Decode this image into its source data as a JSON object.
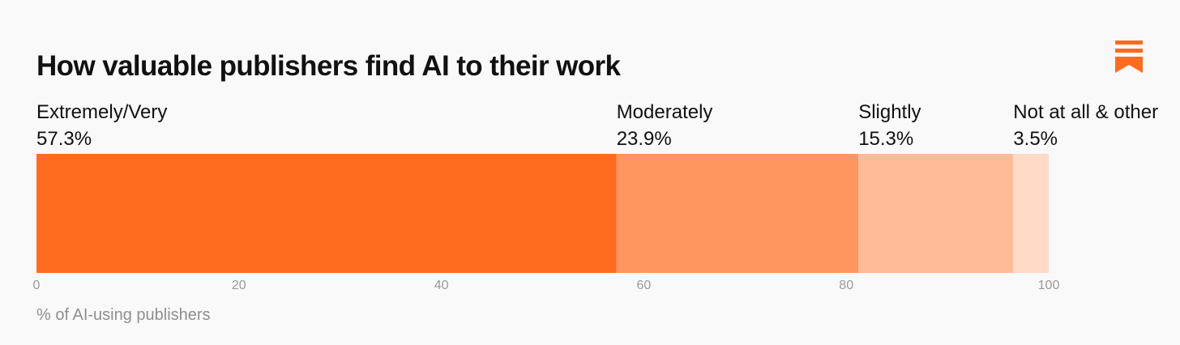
{
  "chart_data": {
    "type": "bar",
    "orientation": "horizontal-stacked",
    "title": "How valuable publishers find AI to their work",
    "xlabel": "% of AI-using publishers",
    "ylabel": "",
    "xlim": [
      0,
      100
    ],
    "ticks": [
      "0",
      "20",
      "40",
      "60",
      "80",
      "100"
    ],
    "tick_values": [
      0,
      20,
      40,
      60,
      80,
      100
    ],
    "grid": false,
    "legend": "labels above segments",
    "segments": [
      {
        "label": "Extremely/Very",
        "value": 57.3,
        "value_label": "57.3%",
        "color": "#ff6b1f"
      },
      {
        "label": "Moderately",
        "value": 23.9,
        "value_label": "23.9%",
        "color": "#ff9660"
      },
      {
        "label": "Slightly",
        "value": 15.3,
        "value_label": "15.3%",
        "color": "#ffbb97"
      },
      {
        "label": "Not at all & other",
        "value": 3.5,
        "value_label": "3.5%",
        "color": "#ffdac6"
      }
    ]
  },
  "brand": {
    "logo_icon": "bookmark-logo-icon",
    "accent": "#ff6b1f"
  }
}
